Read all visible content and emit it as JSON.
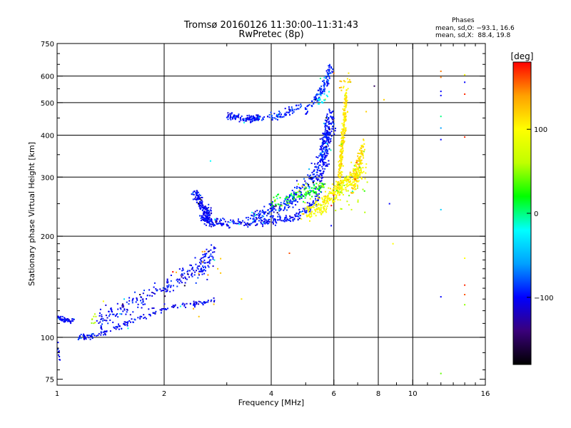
{
  "header": {
    "title_line1": "Tromsø 20160126 11:30:00–11:31:43",
    "title_line2": "RwPretec (8p)"
  },
  "stats": {
    "heading": "Phases",
    "line_o": "mean, sd,O: −93.1, 16.6",
    "line_x": "mean, sd,X:  88.4, 19.8"
  },
  "chart_data": {
    "type": "scatter",
    "title": "Tromsø 20160126 11:30:00–11:31:43",
    "subtitle": "RwPretec (8p)",
    "xlabel": "Frequency [MHz]",
    "ylabel": "Stationary phase Virtual Height [km]",
    "xscale": "log",
    "yscale": "log",
    "xlim": [
      1,
      16
    ],
    "ylim": [
      72,
      750
    ],
    "x_ticks": [
      1,
      2,
      4,
      6,
      8,
      10,
      16
    ],
    "x_tick_labels": [
      "1",
      "2",
      "4",
      "6",
      "8",
      "10",
      "16"
    ],
    "x_gridlines": [
      2,
      4,
      6,
      8,
      10
    ],
    "y_ticks": [
      75,
      100,
      200,
      300,
      400,
      500,
      600,
      750
    ],
    "y_tick_labels": [
      "75",
      "100",
      "200",
      "300",
      "400",
      "500",
      "600",
      "750"
    ],
    "y_gridlines": [
      100,
      200,
      300,
      400,
      500,
      600
    ],
    "grid": true,
    "color_by": "phase",
    "colorbar": {
      "label": "[deg]",
      "range": [
        -180,
        180
      ],
      "ticks": [
        -100,
        0,
        100
      ],
      "tick_labels": [
        "−100",
        "0",
        "100"
      ],
      "colors": [
        "#000000",
        "#3a007a",
        "#0000ff",
        "#00a0ff",
        "#00ffff",
        "#00ff00",
        "#c0ff00",
        "#ffff00",
        "#ffa000",
        "#ff0000"
      ],
      "placement": "right"
    },
    "series": [
      {
        "x": [
          1.0,
          1.1
        ],
        "y": [
          114,
          112
        ],
        "phase": -100,
        "mode": "band",
        "n": 60,
        "xspread": 0.04,
        "yspread": 0.03
      },
      {
        "x": [
          1.0,
          1.02
        ],
        "y": [
          97,
          86
        ],
        "phase": -100,
        "mode": "band",
        "n": 14,
        "xspread": 0.01,
        "yspread": 0.05
      },
      {
        "x": [
          1.15,
          1.25,
          1.45,
          1.7,
          2.0,
          2.4,
          2.75
        ],
        "y": [
          100,
          101,
          106,
          114,
          122,
          126,
          128
        ],
        "phase": -100,
        "mode": "band",
        "n": 170,
        "xspread": 0.03,
        "yspread": 0.03
      },
      {
        "x": [
          1.3,
          1.6,
          2.0,
          2.4,
          2.75
        ],
        "y": [
          112,
          125,
          140,
          158,
          176
        ],
        "phase": -100,
        "mode": "band",
        "n": 220,
        "xspread": 0.07,
        "yspread": 0.09
      },
      {
        "x": [
          2.5,
          2.75
        ],
        "y": [
          150,
          185
        ],
        "phase": -95,
        "mode": "band",
        "n": 35,
        "xspread": 0.05,
        "yspread": 0.1
      },
      {
        "x": [
          2.45,
          2.5,
          2.65,
          2.6,
          2.7,
          3.0,
          3.8,
          4.6,
          5.3,
          5.6,
          5.75,
          5.9
        ],
        "y": [
          272,
          250,
          238,
          225,
          220,
          219,
          220,
          226,
          250,
          320,
          400,
          470
        ],
        "phase": -100,
        "mode": "band",
        "n": 560,
        "xspread": 0.04,
        "yspread": 0.04
      },
      {
        "x": [
          3.5,
          4.5,
          5.5,
          5.85
        ],
        "y": [
          225,
          250,
          320,
          440
        ],
        "phase": -95,
        "mode": "band",
        "n": 380,
        "xspread": 0.06,
        "yspread": 0.07
      },
      {
        "x": [
          5.0,
          5.4,
          5.7,
          5.9
        ],
        "y": [
          470,
          520,
          570,
          640
        ],
        "phase": -90,
        "mode": "band",
        "n": 110,
        "xspread": 0.03,
        "yspread": 0.05
      },
      {
        "x": [
          3.0,
          3.4,
          3.7
        ],
        "y": [
          455,
          447,
          452
        ],
        "phase": -100,
        "mode": "band",
        "n": 130,
        "xspread": 0.03,
        "yspread": 0.04
      },
      {
        "x": [
          3.8,
          4.3,
          4.8
        ],
        "y": [
          450,
          460,
          490
        ],
        "phase": -90,
        "mode": "band",
        "n": 70,
        "xspread": 0.03,
        "yspread": 0.04
      },
      {
        "x": [
          5.4,
          5.9
        ],
        "y": [
          500,
          530
        ],
        "phase": -30,
        "mode": "band",
        "n": 18,
        "xspread": 0.04,
        "yspread": 0.04
      },
      {
        "x": [
          4.0,
          4.6,
          5.1,
          5.6
        ],
        "y": [
          255,
          262,
          272,
          282
        ],
        "phase": 20,
        "mode": "band",
        "n": 90,
        "xspread": 0.05,
        "yspread": 0.06
      },
      {
        "x": [
          5.0,
          5.5,
          5.9,
          6.3,
          6.8,
          7.2
        ],
        "y": [
          232,
          245,
          265,
          280,
          300,
          320
        ],
        "phase": 100,
        "mode": "band",
        "n": 340,
        "xspread": 0.06,
        "yspread": 0.08
      },
      {
        "x": [
          6.2,
          6.3,
          6.4,
          6.5
        ],
        "y": [
          280,
          350,
          420,
          540
        ],
        "phase": 110,
        "mode": "band",
        "n": 230,
        "xspread": 0.02,
        "yspread": 0.06
      },
      {
        "x": [
          6.8,
          7.0,
          7.3
        ],
        "y": [
          270,
          320,
          380
        ],
        "phase": 115,
        "mode": "band",
        "n": 130,
        "xspread": 0.03,
        "yspread": 0.06
      },
      {
        "x": [
          6.3,
          6.7
        ],
        "y": [
          560,
          590
        ],
        "phase": 120,
        "mode": "band",
        "n": 16,
        "xspread": 0.03,
        "yspread": 0.05
      },
      {
        "x": [
          4.0,
          7.5
        ],
        "y": [
          235,
          290
        ],
        "phase": 60,
        "mode": "scatter",
        "n": 40,
        "xspread": 0,
        "yspread": 0
      },
      {
        "x": [
          2.0,
          3.0
        ],
        "y": [
          115,
          190
        ],
        "phase": 130,
        "mode": "scatter",
        "n": 12,
        "xspread": 0,
        "yspread": 0
      },
      {
        "x": [
          1.25,
          1.3
        ],
        "y": [
          110,
          118
        ],
        "phase": 60,
        "mode": "scatter",
        "n": 8,
        "xspread": 0,
        "yspread": 0
      }
    ],
    "points": [
      {
        "x": 12.0,
        "y": 620,
        "phase": 150
      },
      {
        "x": 12.0,
        "y": 595,
        "phase": 150
      },
      {
        "x": 12.0,
        "y": 540,
        "phase": -100
      },
      {
        "x": 12.0,
        "y": 525,
        "phase": -100
      },
      {
        "x": 12.0,
        "y": 455,
        "phase": 0
      },
      {
        "x": 12.0,
        "y": 420,
        "phase": -60
      },
      {
        "x": 12.0,
        "y": 388,
        "phase": -100
      },
      {
        "x": 12.0,
        "y": 240,
        "phase": -40
      },
      {
        "x": 12.0,
        "y": 132,
        "phase": -100
      },
      {
        "x": 12.0,
        "y": 78,
        "phase": 40
      },
      {
        "x": 14.0,
        "y": 605,
        "phase": 100
      },
      {
        "x": 14.0,
        "y": 575,
        "phase": -100
      },
      {
        "x": 14.0,
        "y": 530,
        "phase": 170
      },
      {
        "x": 14.0,
        "y": 395,
        "phase": 170
      },
      {
        "x": 14.0,
        "y": 172,
        "phase": 100
      },
      {
        "x": 14.0,
        "y": 143,
        "phase": 170
      },
      {
        "x": 14.0,
        "y": 134,
        "phase": 160
      },
      {
        "x": 14.0,
        "y": 125,
        "phase": 50
      },
      {
        "x": 7.8,
        "y": 560,
        "phase": -150
      },
      {
        "x": 8.3,
        "y": 510,
        "phase": 120
      },
      {
        "x": 8.6,
        "y": 250,
        "phase": -100
      },
      {
        "x": 8.8,
        "y": 190,
        "phase": 100
      },
      {
        "x": 4.5,
        "y": 178,
        "phase": 160
      },
      {
        "x": 6.6,
        "y": 612,
        "phase": 110
      },
      {
        "x": 2.7,
        "y": 335,
        "phase": -20
      },
      {
        "x": 3.3,
        "y": 130,
        "phase": 110
      },
      {
        "x": 1.35,
        "y": 128,
        "phase": 100
      },
      {
        "x": 5.9,
        "y": 215,
        "phase": -100
      },
      {
        "x": 7.4,
        "y": 470,
        "phase": 120
      },
      {
        "x": 6.0,
        "y": 612,
        "phase": 150
      },
      {
        "x": 5.5,
        "y": 590,
        "phase": 0
      },
      {
        "x": 2.6,
        "y": 180,
        "phase": 150
      }
    ]
  }
}
